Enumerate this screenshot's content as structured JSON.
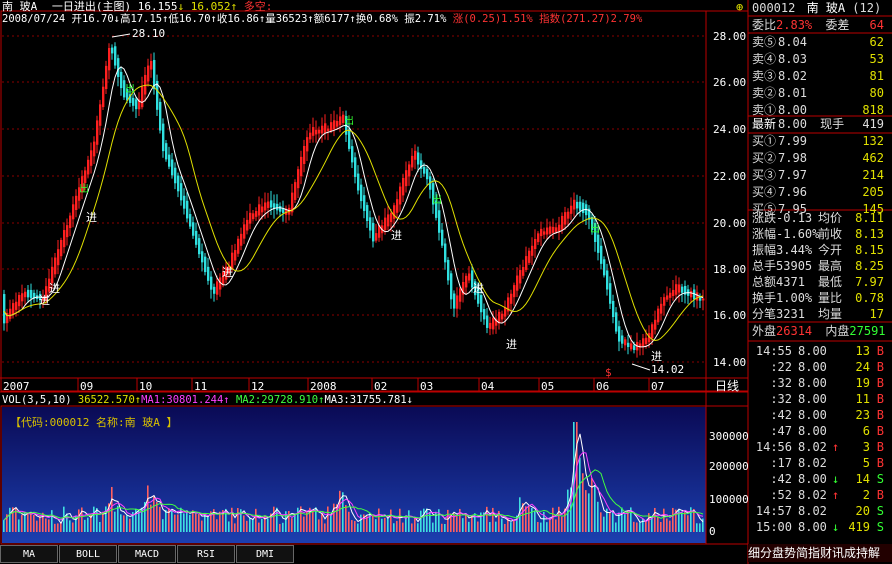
{
  "header": {
    "name": "南 玻A",
    "title": "一日进出(主图)",
    "v1_label": "16.155",
    "v1_arrow": "↓",
    "v2_label": "16.052",
    "v2_arrow": "↑",
    "duokong": "多空:",
    "line2": {
      "date": "2008/07/24",
      "open": "开16.70",
      "high": "↓高17.15",
      "low": "↑低16.70",
      "close": "↑收16.86",
      "vol": "↑量36523",
      "amount": "↑额6177",
      "turnover": "↑换0.68%",
      "swing": "振2.71%",
      "change": "涨(0.25)1.51%",
      "index": "指数(271.27)2.79%"
    }
  },
  "price_axis": [
    "28.00",
    "26.00",
    "24.00",
    "22.00",
    "20.00",
    "18.00",
    "16.00",
    "14.00"
  ],
  "peak_label": "28.10",
  "trough_label": "14.02",
  "signals": {
    "in": "进",
    "out": "出",
    "dollar": "$"
  },
  "time_axis": [
    "2007",
    "09",
    "10",
    "11",
    "12",
    "2008",
    "02",
    "03",
    "04",
    "05",
    "06",
    "07"
  ],
  "period_label": "日线",
  "vol_header": {
    "label": "VOL(3,5,10)",
    "v": "36522.570",
    "ma1": "MA1:30801.244",
    "ma2": "MA2:29728.910",
    "ma3": "MA3:31755.781",
    "arrow_up": "↑",
    "arrow_down": "↓"
  },
  "stock_tag": "【代码:000012 名称:南 玻A 】",
  "vol_axis": [
    "300000",
    "200000",
    "100000",
    "0"
  ],
  "tabs": [
    "MA",
    "BOLL",
    "MACD",
    "RSI",
    "DMI"
  ],
  "right_panel": {
    "top_icon": "⊕",
    "weibi": {
      "label": "委比",
      "value": "2.83%",
      "label2": "委差",
      "value2": "64"
    },
    "sells": [
      {
        "label": "卖⑤",
        "price": "8.04",
        "vol": "62"
      },
      {
        "label": "卖④",
        "price": "8.03",
        "vol": "53"
      },
      {
        "label": "卖③",
        "price": "8.02",
        "vol": "81"
      },
      {
        "label": "卖②",
        "price": "8.01",
        "vol": "80"
      },
      {
        "label": "卖①",
        "price": "8.00",
        "vol": "818"
      }
    ],
    "code": "000012",
    "name": "南 玻A",
    "count": "(12)",
    "latest": {
      "label": "最新",
      "price": "8.00",
      "label2": "现手",
      "vol": "419"
    },
    "buys": [
      {
        "label": "买①",
        "price": "7.99",
        "vol": "132"
      },
      {
        "label": "买②",
        "price": "7.98",
        "vol": "462"
      },
      {
        "label": "买③",
        "price": "7.97",
        "vol": "214"
      },
      {
        "label": "买④",
        "price": "7.96",
        "vol": "205"
      },
      {
        "label": "买⑤",
        "price": "7.95",
        "vol": "145"
      }
    ],
    "stats": [
      {
        "l1": "涨跌",
        "v1": "-0.13",
        "l2": "均价",
        "v2": "8.11"
      },
      {
        "l1": "涨幅",
        "v1": "-1.60%",
        "l2": "前收",
        "v2": "8.13"
      },
      {
        "l1": "振幅",
        "v1": "3.44%",
        "l2": "今开",
        "v2": "8.15"
      },
      {
        "l1": "总手",
        "v1": "53905",
        "l2": "最高",
        "v2": "8.25"
      },
      {
        "l1": "总额",
        "v1": "4371",
        "l2": "最低",
        "v2": "7.97"
      },
      {
        "l1": "换手",
        "v1": "1.00%",
        "l2": "量比",
        "v2": "0.78"
      },
      {
        "l1": "分笔",
        "v1": "3231",
        "l2": "均量",
        "v2": "17"
      }
    ],
    "outer": {
      "label": "外盘",
      "value": "26314",
      "label2": "内盘",
      "value2": "27591"
    },
    "ticks": [
      {
        "time": "14:55",
        "price": "8.00",
        "vol": "13",
        "bs": "B"
      },
      {
        "time": ":22",
        "price": "8.00",
        "vol": "24",
        "bs": "B"
      },
      {
        "time": ":32",
        "price": "8.00",
        "vol": "19",
        "bs": "B"
      },
      {
        "time": ":32",
        "price": "8.00",
        "vol": "11",
        "bs": "B"
      },
      {
        "time": ":42",
        "price": "8.00",
        "vol": "23",
        "bs": "B"
      },
      {
        "time": ":47",
        "price": "8.00",
        "vol": "6",
        "bs": "B"
      },
      {
        "time": "14:56",
        "price": "8.02",
        "vol": "3",
        "bs": "B"
      },
      {
        "time": ":17",
        "price": "8.02",
        "vol": "5",
        "bs": "B"
      },
      {
        "time": ":42",
        "price": "8.00",
        "vol": "14",
        "bs": "S"
      },
      {
        "time": ":52",
        "price": "8.02",
        "vol": "2",
        "bs": "B"
      },
      {
        "time": "14:57",
        "price": "8.02",
        "vol": "20",
        "bs": "S"
      },
      {
        "time": "15:00",
        "price": "8.00",
        "vol": "419",
        "bs": "S"
      }
    ],
    "tick_arrows": [
      "",
      "",
      "",
      "",
      "",
      "",
      "↑",
      "",
      "↓",
      "↑",
      "",
      "↓"
    ],
    "footer": "细分盘势简指财讯成持解"
  }
}
